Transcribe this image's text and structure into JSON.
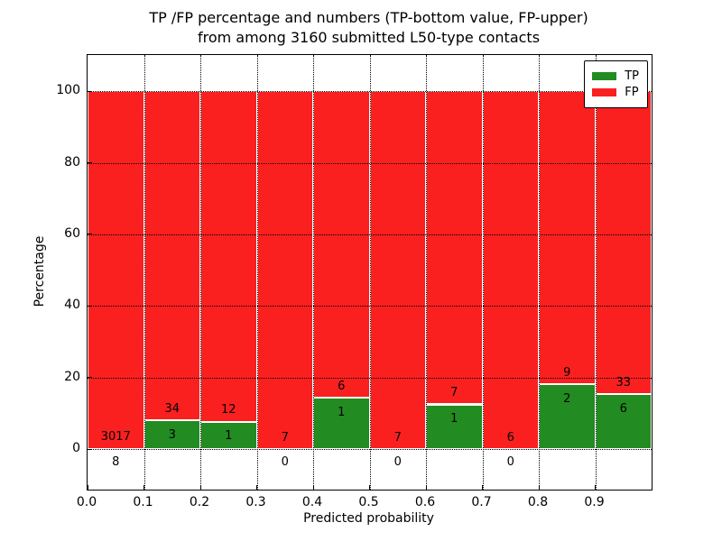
{
  "title": {
    "line1": "TP /FP percentage and numbers (TP-bottom value, FP-upper)",
    "line2": "from among 3160 submitted L50-type contacts"
  },
  "axes": {
    "xlabel": "Predicted probability",
    "ylabel": "Percentage",
    "x_tick_labels": [
      "0.0",
      "0.1",
      "0.2",
      "0.3",
      "0.4",
      "0.5",
      "0.6",
      "0.7",
      "0.8",
      "0.9"
    ],
    "y_tick_labels": [
      "0",
      "20",
      "40",
      "60",
      "80",
      "100"
    ]
  },
  "legend": {
    "items": [
      {
        "label": "TP",
        "color": "#228b22"
      },
      {
        "label": "FP",
        "color": "#fa2020"
      }
    ]
  },
  "colors": {
    "tp_green": "#228b22",
    "fp_red": "#fa2020",
    "grid": "#000000",
    "frame": "#000000",
    "background": "#ffffff",
    "annotation_text": "#000000"
  },
  "chart_data": {
    "type": "bar",
    "stacked": true,
    "title": "TP /FP percentage and numbers (TP-bottom value, FP-upper) from among 3160 submitted L50-type contacts",
    "xlabel": "Predicted probability",
    "ylabel": "Percentage",
    "x_bin_edges": [
      0.0,
      0.1,
      0.2,
      0.3,
      0.4,
      0.5,
      0.6,
      0.7,
      0.8,
      0.9,
      1.0
    ],
    "categories": [
      "0.0-0.1",
      "0.1-0.2",
      "0.2-0.3",
      "0.3-0.4",
      "0.4-0.5",
      "0.5-0.6",
      "0.6-0.7",
      "0.7-0.8",
      "0.8-0.9",
      "0.9-1.0"
    ],
    "series": [
      {
        "name": "TP",
        "color": "#228b22",
        "values": [
          8,
          3,
          1,
          0,
          1,
          0,
          1,
          0,
          2,
          6
        ]
      },
      {
        "name": "FP",
        "color": "#fa2020",
        "values": [
          3017,
          34,
          12,
          7,
          6,
          7,
          7,
          6,
          9,
          33
        ]
      }
    ],
    "tp_percent_of_bin": [
      0.26,
      8.11,
      7.69,
      0.0,
      14.29,
      0.0,
      12.5,
      0.0,
      18.18,
      15.38
    ],
    "bars_total_percent": 100,
    "total_submitted": 3160,
    "xlim": [
      0.0,
      1.0
    ],
    "ylim": [
      -11.3,
      110.1
    ],
    "x_ticks": [
      0.0,
      0.1,
      0.2,
      0.3,
      0.4,
      0.5,
      0.6,
      0.7,
      0.8,
      0.9
    ],
    "y_ticks": [
      0,
      20,
      40,
      60,
      80,
      100
    ],
    "grid": "dotted black, drawn over bars",
    "legend_position": "upper right",
    "annotation_note": "TP count drawn at bottom of green segment (below x-axis when segment is near zero); FP count drawn just above the TP/FP boundary"
  }
}
